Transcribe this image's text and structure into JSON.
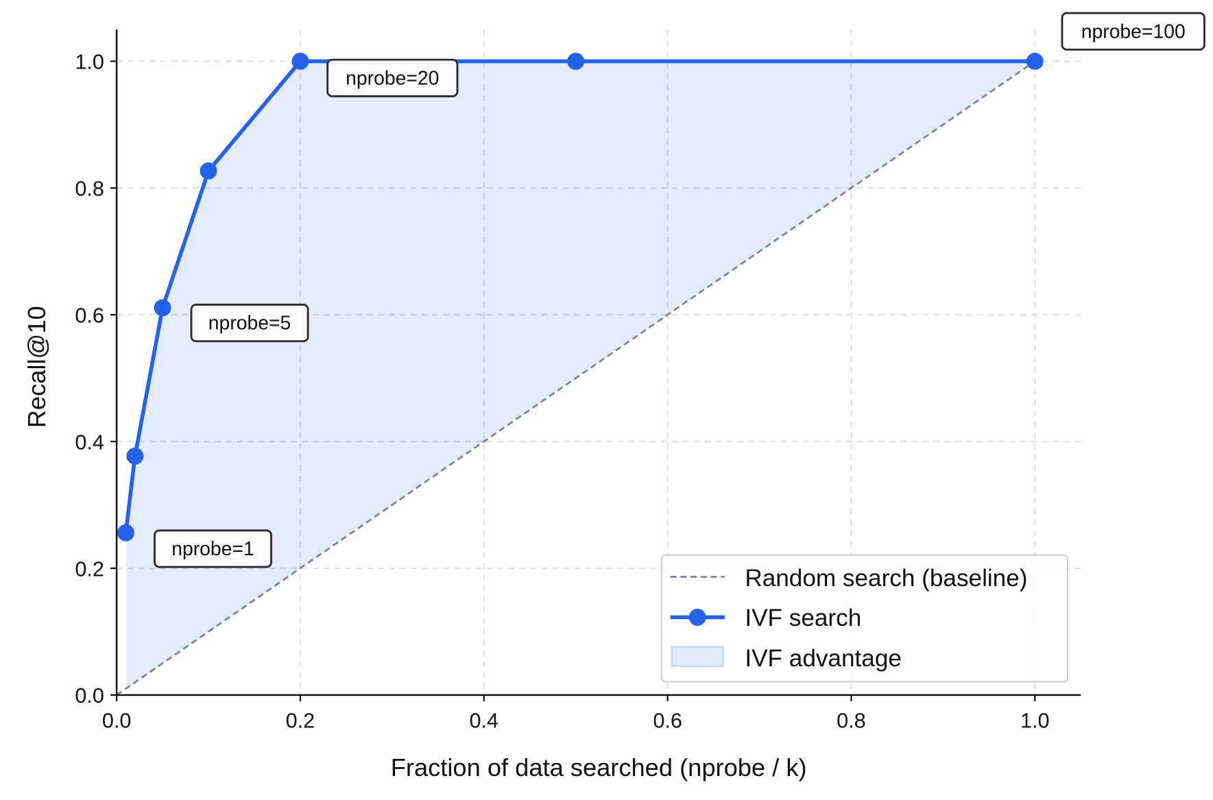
{
  "chart_data": {
    "type": "line",
    "title": "",
    "xlabel": "Fraction of data searched (nprobe / k)",
    "ylabel": "Recall@10",
    "xlim": [
      0,
      1.05
    ],
    "ylim": [
      0,
      1.05
    ],
    "xticks": [
      "0.0",
      "0.2",
      "0.4",
      "0.6",
      "0.8",
      "1.0"
    ],
    "yticks": [
      "0.0",
      "0.2",
      "0.4",
      "0.6",
      "0.8",
      "1.0"
    ],
    "grid": true,
    "legend_position": "lower-right",
    "series": [
      {
        "name": "Random search (baseline)",
        "style": "dashed",
        "color": "#7f8799",
        "x": [
          0,
          1.0
        ],
        "y": [
          0,
          1.0
        ]
      },
      {
        "name": "IVF search",
        "style": "solid-markers",
        "color": "#2563eb",
        "x": [
          0.01,
          0.02,
          0.05,
          0.1,
          0.2,
          0.5,
          1.0
        ],
        "y": [
          0.256,
          0.377,
          0.611,
          0.827,
          1.0,
          1.0,
          1.0
        ]
      }
    ],
    "fill": {
      "name": "IVF advantage",
      "color": "#2563eb",
      "opacity": 0.13,
      "between": [
        "IVF search",
        "Random search (baseline)"
      ]
    },
    "annotations": [
      {
        "text": "nprobe=1",
        "x": 0.01,
        "y": 0.256
      },
      {
        "text": "nprobe=5",
        "x": 0.05,
        "y": 0.611
      },
      {
        "text": "nprobe=20",
        "x": 0.2,
        "y": 1.0
      },
      {
        "text": "nprobe=100",
        "x": 1.0,
        "y": 1.0
      }
    ]
  }
}
